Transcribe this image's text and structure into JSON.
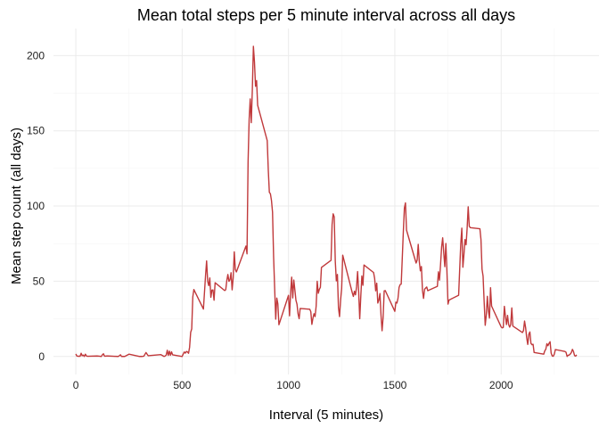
{
  "chart_data": {
    "type": "line",
    "title": "Mean total steps per 5 minute interval across all days",
    "xlabel": "Interval (5 minutes)",
    "ylabel": "Mean step count (all days)",
    "xlim": [
      -105,
      2460
    ],
    "ylim": [
      -12,
      218
    ],
    "x_ticks": [
      0,
      500,
      1000,
      1500,
      2000
    ],
    "y_ticks": [
      0,
      50,
      100,
      150,
      200
    ],
    "grid": true,
    "series": [
      {
        "color": "#c0393b",
        "points": [
          [
            0,
            1.7
          ],
          [
            5,
            0.3
          ],
          [
            10,
            0.1
          ],
          [
            15,
            0.2
          ],
          [
            20,
            0.1
          ],
          [
            25,
            2.1
          ],
          [
            30,
            0.5
          ],
          [
            35,
            0.9
          ],
          [
            40,
            0
          ],
          [
            45,
            1.5
          ],
          [
            50,
            0.3
          ],
          [
            55,
            0.1
          ],
          [
            100,
            0.3
          ],
          [
            110,
            0.2
          ],
          [
            120,
            0
          ],
          [
            125,
            1.1
          ],
          [
            130,
            1.8
          ],
          [
            135,
            0.2
          ],
          [
            140,
            0.2
          ],
          [
            145,
            0.3
          ],
          [
            150,
            0.3
          ],
          [
            200,
            0
          ],
          [
            210,
            1.1
          ],
          [
            215,
            0
          ],
          [
            230,
            0
          ],
          [
            250,
            1.5
          ],
          [
            300,
            0
          ],
          [
            310,
            0
          ],
          [
            320,
            0.2
          ],
          [
            330,
            2.6
          ],
          [
            340,
            0.5
          ],
          [
            400,
            1.2
          ],
          [
            415,
            0
          ],
          [
            420,
            0.3
          ],
          [
            425,
            0.9
          ],
          [
            430,
            4.1
          ],
          [
            435,
            0.7
          ],
          [
            440,
            3.5
          ],
          [
            445,
            0.8
          ],
          [
            450,
            3.1
          ],
          [
            455,
            1.1
          ],
          [
            500,
            0
          ],
          [
            505,
            1.6
          ],
          [
            510,
            3
          ],
          [
            515,
            2.2
          ],
          [
            520,
            3.3
          ],
          [
            525,
            3
          ],
          [
            530,
            2.1
          ],
          [
            535,
            6.1
          ],
          [
            540,
            16
          ],
          [
            545,
            18.3
          ],
          [
            550,
            39.5
          ],
          [
            555,
            44.5
          ],
          [
            600,
            31.5
          ],
          [
            610,
            53.8
          ],
          [
            615,
            63.5
          ],
          [
            620,
            50
          ],
          [
            625,
            47.1
          ],
          [
            630,
            52.2
          ],
          [
            635,
            39.3
          ],
          [
            640,
            44.1
          ],
          [
            645,
            44.2
          ],
          [
            650,
            37.4
          ],
          [
            655,
            49
          ],
          [
            700,
            43.8
          ],
          [
            705,
            44.4
          ],
          [
            710,
            50.5
          ],
          [
            715,
            54.5
          ],
          [
            720,
            49.9
          ],
          [
            725,
            51
          ],
          [
            730,
            55.7
          ],
          [
            735,
            44.3
          ],
          [
            740,
            52.3
          ],
          [
            745,
            69.5
          ],
          [
            750,
            57.8
          ],
          [
            755,
            56.2
          ],
          [
            800,
            73.4
          ],
          [
            805,
            68.2
          ],
          [
            810,
            129.4
          ],
          [
            815,
            157.5
          ],
          [
            820,
            171.2
          ],
          [
            825,
            155.4
          ],
          [
            830,
            177.3
          ],
          [
            835,
            206.2
          ],
          [
            840,
            195.9
          ],
          [
            845,
            179.6
          ],
          [
            850,
            183.4
          ],
          [
            855,
            167
          ],
          [
            900,
            143.5
          ],
          [
            905,
            124
          ],
          [
            910,
            109.1
          ],
          [
            915,
            108.1
          ],
          [
            920,
            103.7
          ],
          [
            925,
            95.9
          ],
          [
            930,
            66.2
          ],
          [
            935,
            45.2
          ],
          [
            940,
            24.8
          ],
          [
            945,
            38.8
          ],
          [
            950,
            34.98
          ],
          [
            955,
            21.1
          ],
          [
            1000,
            40.6
          ],
          [
            1005,
            27
          ],
          [
            1010,
            42.4
          ],
          [
            1015,
            52.7
          ],
          [
            1020,
            38.9
          ],
          [
            1025,
            50.8
          ],
          [
            1030,
            44.3
          ],
          [
            1035,
            37.4
          ],
          [
            1040,
            34.7
          ],
          [
            1045,
            28.3
          ],
          [
            1050,
            25.1
          ],
          [
            1055,
            31.9
          ],
          [
            1100,
            31.4
          ],
          [
            1105,
            29.7
          ],
          [
            1110,
            21.3
          ],
          [
            1115,
            25.5
          ],
          [
            1120,
            28.4
          ],
          [
            1125,
            26.5
          ],
          [
            1130,
            33.4
          ],
          [
            1135,
            49.98
          ],
          [
            1140,
            42
          ],
          [
            1145,
            44.6
          ],
          [
            1150,
            46
          ],
          [
            1155,
            59.2
          ],
          [
            1200,
            63.9
          ],
          [
            1205,
            87.7
          ],
          [
            1210,
            94.8
          ],
          [
            1215,
            92.8
          ],
          [
            1220,
            63.4
          ],
          [
            1225,
            50.2
          ],
          [
            1230,
            54.5
          ],
          [
            1235,
            32.4
          ],
          [
            1240,
            26.5
          ],
          [
            1245,
            37.7
          ],
          [
            1250,
            45.1
          ],
          [
            1255,
            67.3
          ],
          [
            1300,
            42.3
          ],
          [
            1305,
            39.9
          ],
          [
            1310,
            43.3
          ],
          [
            1315,
            40.98
          ],
          [
            1320,
            46.2
          ],
          [
            1325,
            56.4
          ],
          [
            1330,
            42.8
          ],
          [
            1335,
            25.1
          ],
          [
            1340,
            39.97
          ],
          [
            1345,
            53.5
          ],
          [
            1350,
            47.3
          ],
          [
            1355,
            60.8
          ],
          [
            1400,
            55.8
          ],
          [
            1405,
            51.96
          ],
          [
            1410,
            43.6
          ],
          [
            1415,
            48.7
          ],
          [
            1420,
            35.5
          ],
          [
            1425,
            37.5
          ],
          [
            1430,
            41.8
          ],
          [
            1435,
            27.5
          ],
          [
            1440,
            17.1
          ],
          [
            1445,
            26.1
          ],
          [
            1450,
            43.6
          ],
          [
            1455,
            43.8
          ],
          [
            1500,
            30
          ],
          [
            1505,
            36.1
          ],
          [
            1510,
            35.5
          ],
          [
            1515,
            38.8
          ],
          [
            1520,
            45.96
          ],
          [
            1525,
            47.8
          ],
          [
            1530,
            48.1
          ],
          [
            1535,
            65.3
          ],
          [
            1540,
            82.9
          ],
          [
            1545,
            98.7
          ],
          [
            1550,
            102.1
          ],
          [
            1555,
            83.96
          ],
          [
            1600,
            62.1
          ],
          [
            1605,
            64.1
          ],
          [
            1610,
            74.5
          ],
          [
            1615,
            63.2
          ],
          [
            1620,
            56.9
          ],
          [
            1625,
            59.8
          ],
          [
            1630,
            43.9
          ],
          [
            1635,
            38.6
          ],
          [
            1640,
            44.7
          ],
          [
            1645,
            45.5
          ],
          [
            1650,
            46.2
          ],
          [
            1655,
            43.7
          ],
          [
            1700,
            46.6
          ],
          [
            1705,
            56.3
          ],
          [
            1710,
            50.7
          ],
          [
            1715,
            61.2
          ],
          [
            1720,
            72.7
          ],
          [
            1725,
            78.9
          ],
          [
            1730,
            68.9
          ],
          [
            1735,
            59.7
          ],
          [
            1740,
            75.1
          ],
          [
            1745,
            56.5
          ],
          [
            1750,
            34.8
          ],
          [
            1755,
            37.5
          ],
          [
            1800,
            40.7
          ],
          [
            1805,
            58
          ],
          [
            1810,
            74.7
          ],
          [
            1815,
            85.3
          ],
          [
            1820,
            59.3
          ],
          [
            1825,
            67.8
          ],
          [
            1830,
            77.7
          ],
          [
            1835,
            74.2
          ],
          [
            1840,
            85.3
          ],
          [
            1845,
            99.5
          ],
          [
            1850,
            86.6
          ],
          [
            1855,
            85.6
          ],
          [
            1900,
            84.9
          ],
          [
            1905,
            77.8
          ],
          [
            1910,
            58
          ],
          [
            1915,
            53.4
          ],
          [
            1920,
            36.3
          ],
          [
            1925,
            20.7
          ],
          [
            1930,
            27.4
          ],
          [
            1935,
            40
          ],
          [
            1940,
            30.2
          ],
          [
            1945,
            25.5
          ],
          [
            1950,
            45.7
          ],
          [
            1955,
            33.5
          ],
          [
            2000,
            19.6
          ],
          [
            2005,
            19
          ],
          [
            2010,
            19.3
          ],
          [
            2015,
            33.3
          ],
          [
            2020,
            26.8
          ],
          [
            2025,
            21.2
          ],
          [
            2030,
            27.3
          ],
          [
            2035,
            21.3
          ],
          [
            2040,
            19.5
          ],
          [
            2045,
            21.3
          ],
          [
            2050,
            32.3
          ],
          [
            2055,
            20.2
          ],
          [
            2100,
            15.9
          ],
          [
            2105,
            17.2
          ],
          [
            2110,
            23.5
          ],
          [
            2115,
            19.2
          ],
          [
            2120,
            12.5
          ],
          [
            2125,
            8
          ],
          [
            2130,
            14.7
          ],
          [
            2135,
            16.3
          ],
          [
            2140,
            8.7
          ],
          [
            2145,
            7.8
          ],
          [
            2150,
            8.1
          ],
          [
            2155,
            2.6
          ],
          [
            2200,
            1.5
          ],
          [
            2205,
            3.7
          ],
          [
            2210,
            4.8
          ],
          [
            2215,
            8.5
          ],
          [
            2220,
            7.1
          ],
          [
            2225,
            8.7
          ],
          [
            2230,
            9.8
          ],
          [
            2235,
            2.2
          ],
          [
            2240,
            0.3
          ],
          [
            2245,
            0.1
          ],
          [
            2250,
            1.6
          ],
          [
            2255,
            4.6
          ],
          [
            2300,
            3.3
          ],
          [
            2305,
            2.8
          ],
          [
            2310,
            0
          ],
          [
            2315,
            0.8
          ],
          [
            2320,
            0.96
          ],
          [
            2325,
            1.6
          ],
          [
            2330,
            2.6
          ],
          [
            2335,
            4.7
          ],
          [
            2340,
            3.3
          ],
          [
            2345,
            0.6
          ],
          [
            2350,
            0.2
          ],
          [
            2355,
            1.1
          ]
        ]
      }
    ]
  }
}
